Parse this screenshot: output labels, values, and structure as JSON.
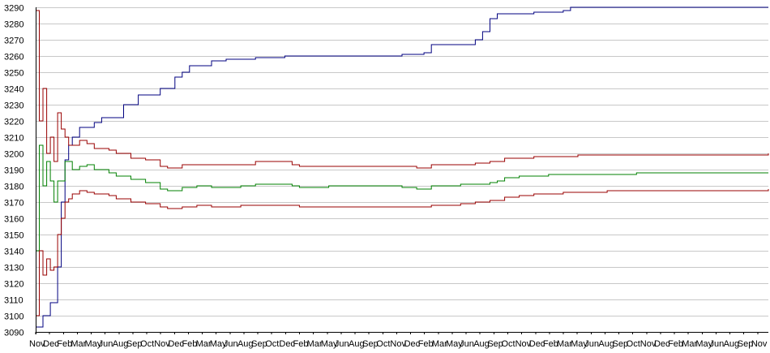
{
  "chart_data": {
    "type": "line",
    "title": "",
    "xlabel": "",
    "ylabel": "",
    "ylim": [
      3090,
      3290
    ],
    "y_ticks": [
      3090,
      3100,
      3110,
      3120,
      3130,
      3140,
      3150,
      3160,
      3170,
      3180,
      3190,
      3200,
      3210,
      3220,
      3230,
      3240,
      3250,
      3260,
      3270,
      3280,
      3290
    ],
    "grid": true,
    "legend": "none",
    "x_tick_labels": [
      "Nov",
      "Dec",
      "Feb",
      "Mar",
      "May",
      "Jun",
      "Aug",
      "Sep",
      "Oct",
      "Nov",
      "Dec",
      "Feb",
      "Mar",
      "May",
      "Jun",
      "Aug",
      "Sep",
      "Oct",
      "Dec",
      "Feb",
      "Mar",
      "May",
      "Jun",
      "Aug",
      "Sep",
      "Oct",
      "Nov",
      "Dec",
      "Feb",
      "Mar",
      "May",
      "Jun",
      "Aug",
      "Sep",
      "Oct",
      "Nov",
      "Dec",
      "Feb",
      "Mar",
      "May",
      "Jun",
      "Aug",
      "Sep",
      "Oct",
      "Nov",
      "Dec",
      "Feb",
      "Mar",
      "May",
      "Jun",
      "Aug",
      "Sep",
      "Nov"
    ],
    "x_range": [
      0,
      100
    ],
    "series": [
      {
        "color": "#000080",
        "x": [
          0,
          1,
          2,
          3,
          3.5,
          4,
          4.5,
          5,
          6,
          7,
          8,
          9,
          10,
          12,
          14,
          16,
          17,
          18,
          19,
          20,
          21,
          22,
          24,
          26,
          28,
          30,
          34,
          40,
          46,
          50,
          53,
          54,
          56,
          58,
          60,
          61,
          62,
          63,
          64,
          66,
          68,
          70,
          72,
          73,
          74,
          80,
          100
        ],
        "y": [
          3093,
          3100,
          3108,
          3130,
          3170,
          3196,
          3205,
          3210,
          3216,
          3216,
          3219,
          3222,
          3222,
          3230,
          3236,
          3236,
          3240,
          3240,
          3247,
          3250,
          3254,
          3254,
          3257,
          3258,
          3258,
          3259,
          3260,
          3260,
          3260,
          3261,
          3262,
          3267,
          3267,
          3267,
          3270,
          3275,
          3283,
          3286,
          3286,
          3286,
          3287,
          3287,
          3288,
          3290,
          3290,
          3290,
          3290
        ]
      },
      {
        "color": "#008000",
        "x": [
          0,
          0.5,
          1,
          1.5,
          2,
          2.5,
          3,
          4,
          5,
          6,
          7,
          8,
          9,
          10,
          11,
          13,
          15,
          17,
          18,
          19,
          20,
          22,
          24,
          26,
          28,
          30,
          32,
          34,
          35,
          36,
          38,
          40,
          44,
          48,
          50,
          52,
          54,
          56,
          58,
          60,
          62,
          63,
          64,
          66,
          68,
          70,
          72,
          74,
          78,
          82,
          86,
          90,
          95,
          100
        ],
        "y": [
          3140,
          3205,
          3180,
          3195,
          3183,
          3170,
          3183,
          3195,
          3190,
          3192,
          3193,
          3190,
          3190,
          3188,
          3186,
          3184,
          3182,
          3178,
          3177,
          3177,
          3179,
          3180,
          3179,
          3179,
          3180,
          3181,
          3181,
          3181,
          3180,
          3179,
          3179,
          3180,
          3180,
          3180,
          3179,
          3178,
          3180,
          3180,
          3181,
          3181,
          3182,
          3183,
          3185,
          3186,
          3186,
          3187,
          3187,
          3187,
          3187,
          3188,
          3188,
          3188,
          3188,
          3188
        ]
      },
      {
        "color": "#990000",
        "x": [
          0,
          0.5,
          1,
          1.5,
          2,
          2.5,
          3,
          3.5,
          4,
          4.5,
          5,
          6,
          7,
          8,
          9,
          10,
          11,
          13,
          15,
          17,
          18,
          19,
          20,
          22,
          24,
          26,
          28,
          30,
          32,
          34,
          35,
          36,
          38,
          40,
          44,
          48,
          50,
          52,
          54,
          56,
          58,
          60,
          62,
          63,
          64,
          66,
          68,
          70,
          72,
          74,
          78,
          82,
          86,
          90,
          95,
          100
        ],
        "y": [
          3288,
          3220,
          3240,
          3200,
          3210,
          3195,
          3225,
          3215,
          3210,
          3205,
          3205,
          3208,
          3206,
          3203,
          3203,
          3202,
          3200,
          3197,
          3196,
          3192,
          3191,
          3191,
          3193,
          3193,
          3193,
          3193,
          3193,
          3195,
          3195,
          3195,
          3193,
          3192,
          3192,
          3192,
          3192,
          3192,
          3192,
          3191,
          3193,
          3193,
          3193,
          3194,
          3195,
          3195,
          3197,
          3197,
          3198,
          3198,
          3198,
          3199,
          3199,
          3199,
          3199,
          3199,
          3199,
          3200
        ]
      },
      {
        "color": "#990000",
        "x": [
          0,
          0.5,
          1,
          1.5,
          2,
          2.5,
          3,
          3.5,
          4,
          4.5,
          5,
          6,
          7,
          8,
          9,
          10,
          11,
          13,
          15,
          17,
          18,
          19,
          20,
          22,
          24,
          26,
          28,
          30,
          32,
          34,
          35,
          36,
          38,
          40,
          44,
          48,
          50,
          52,
          54,
          56,
          58,
          60,
          62,
          63,
          64,
          66,
          68,
          70,
          72,
          74,
          78,
          82,
          86,
          90,
          95,
          100
        ],
        "y": [
          3100,
          3140,
          3125,
          3135,
          3128,
          3130,
          3150,
          3160,
          3170,
          3172,
          3175,
          3177,
          3176,
          3175,
          3175,
          3174,
          3172,
          3170,
          3169,
          3167,
          3166,
          3166,
          3167,
          3168,
          3167,
          3167,
          3168,
          3168,
          3168,
          3168,
          3168,
          3167,
          3167,
          3167,
          3167,
          3167,
          3167,
          3167,
          3168,
          3168,
          3169,
          3170,
          3171,
          3171,
          3173,
          3174,
          3175,
          3175,
          3176,
          3176,
          3177,
          3177,
          3177,
          3177,
          3177,
          3178
        ]
      }
    ]
  }
}
